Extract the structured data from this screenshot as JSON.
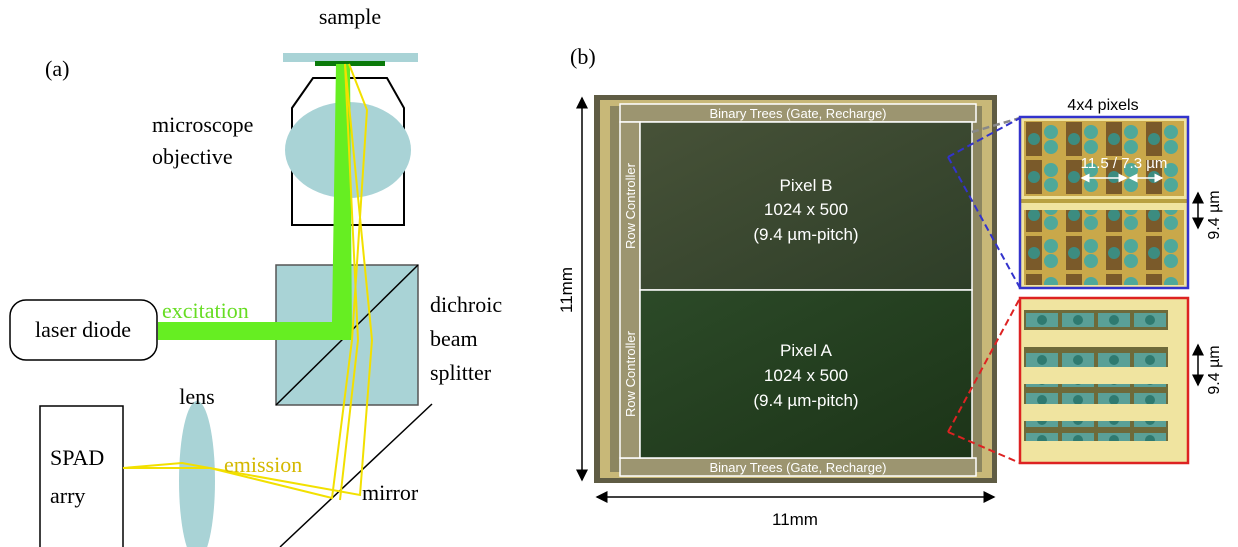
{
  "panel_a": {
    "label": "(a)",
    "sample": "sample",
    "objective": [
      "microscope",
      "objective"
    ],
    "excitation": "excitation",
    "laser": "laser diode",
    "splitter": [
      "dichroic",
      "beam",
      "splitter"
    ],
    "lens": "lens",
    "emission": "emission",
    "detector": [
      "SPAD",
      "arry"
    ],
    "mirror": "mirror"
  },
  "panel_b": {
    "label": "(b)",
    "top_band": "Binary Trees (Gate, Recharge)",
    "bottom_band": "Binary Trees (Gate, Recharge)",
    "row_controller_top": "Row Controller",
    "row_controller_bottom": "Row Controller",
    "pixel_b": [
      "Pixel B",
      "1024 x 500",
      "(9.4 µm-pitch)"
    ],
    "pixel_a": [
      "Pixel A",
      "1024 x 500",
      "(9.4 µm-pitch)"
    ],
    "height_label": "11mm",
    "width_label": "11mm",
    "zoom_title": "4x4 pixels",
    "zoom_b_width": "11.5 / 7.3 µm",
    "zoom_b_pitch": "9.4 µm",
    "zoom_a_pitch": "9.4 µm"
  }
}
